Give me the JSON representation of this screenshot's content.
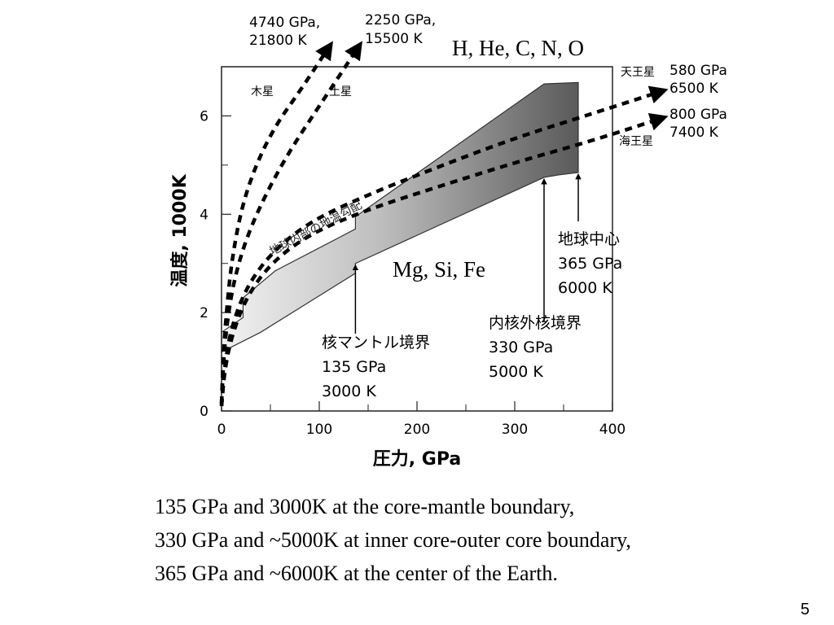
{
  "chart_data": {
    "type": "area",
    "xlabel": "圧力, GPa",
    "ylabel": "温度, 1000K",
    "xlim": [
      0,
      400
    ],
    "ylim": [
      0,
      7
    ],
    "x_ticks": [
      0,
      100,
      200,
      300,
      400
    ],
    "y_ticks": [
      0,
      2,
      4,
      6
    ],
    "grid": false,
    "series": [
      {
        "name": "地球内部の地温勾配",
        "style": "filled-band",
        "upper": {
          "x": [
            0,
            22,
            22,
            55,
            137,
            137,
            330,
            365,
            365
          ],
          "y": [
            1.6,
            1.9,
            2.3,
            2.85,
            3.7,
            3.95,
            6.65,
            6.68,
            6.68
          ]
        },
        "lower": {
          "x": [
            0,
            40,
            137,
            137,
            330,
            345,
            365
          ],
          "y": [
            1.2,
            1.6,
            2.8,
            3.0,
            4.75,
            4.8,
            4.85
          ]
        }
      },
      {
        "name": "木星",
        "style": "dashed-arrow",
        "x": [
          0,
          2,
          5,
          10,
          20,
          35,
          55,
          80,
          110
        ],
        "y": [
          0.15,
          1.2,
          2.0,
          3.0,
          4.1,
          5.0,
          5.8,
          6.5,
          7.4
        ]
      },
      {
        "name": "土星",
        "style": "dashed-arrow",
        "x": [
          0,
          2,
          5,
          12,
          25,
          45,
          70,
          100,
          140
        ],
        "y": [
          0.15,
          1.0,
          1.7,
          2.6,
          3.5,
          4.4,
          5.3,
          6.2,
          7.4
        ]
      },
      {
        "name": "天王星",
        "style": "dashed-arrow",
        "x": [
          0,
          3,
          10,
          25,
          50,
          90,
          150,
          220,
          300,
          380,
          450
        ],
        "y": [
          0.1,
          0.9,
          1.7,
          2.5,
          3.2,
          3.85,
          4.4,
          4.95,
          5.55,
          6.05,
          6.5
        ]
      },
      {
        "name": "海王星",
        "style": "dashed-arrow",
        "x": [
          0,
          3,
          10,
          25,
          50,
          90,
          150,
          220,
          300,
          380,
          450
        ],
        "y": [
          0.1,
          0.8,
          1.5,
          2.3,
          3.0,
          3.6,
          4.1,
          4.55,
          5.05,
          5.5,
          5.95
        ]
      }
    ],
    "series_labels": {
      "jupiter": "木星",
      "saturn": "土星",
      "uranus": "天王星",
      "neptune": "海王星",
      "band": "地球内部の地温勾配"
    },
    "endpoints": {
      "jupiter": [
        "4740 GPa,",
        "21800 K"
      ],
      "saturn": [
        "2250 GPa,",
        "15500 K"
      ],
      "uranus": [
        "580 GPa",
        "6500 K"
      ],
      "neptune": [
        "800 GPa",
        "7400 K"
      ]
    },
    "markers": [
      {
        "id": "cmb",
        "x": 137,
        "y": 3.0,
        "lines": [
          "核マントル境界",
          "135 GPa",
          "3000 K"
        ]
      },
      {
        "id": "icb",
        "x": 330,
        "y": 4.75,
        "lines": [
          "内核外核境界",
          "330 GPa",
          "5000 K"
        ]
      },
      {
        "id": "center",
        "x": 365,
        "y": 4.85,
        "lines": [
          "地球中心",
          "365 GPa",
          "6000 K"
        ]
      }
    ],
    "annotations": {
      "light_elements": "H, He, C, N, O",
      "heavy_elements": "Mg, Si, Fe"
    }
  },
  "captions": [
    "135 GPa and 3000K at the core-mantle boundary,",
    "330 GPa and ~5000K at inner core-outer core boundary,",
    "365 GPa and ~6000K at the center of the Earth."
  ],
  "page_number": "5"
}
